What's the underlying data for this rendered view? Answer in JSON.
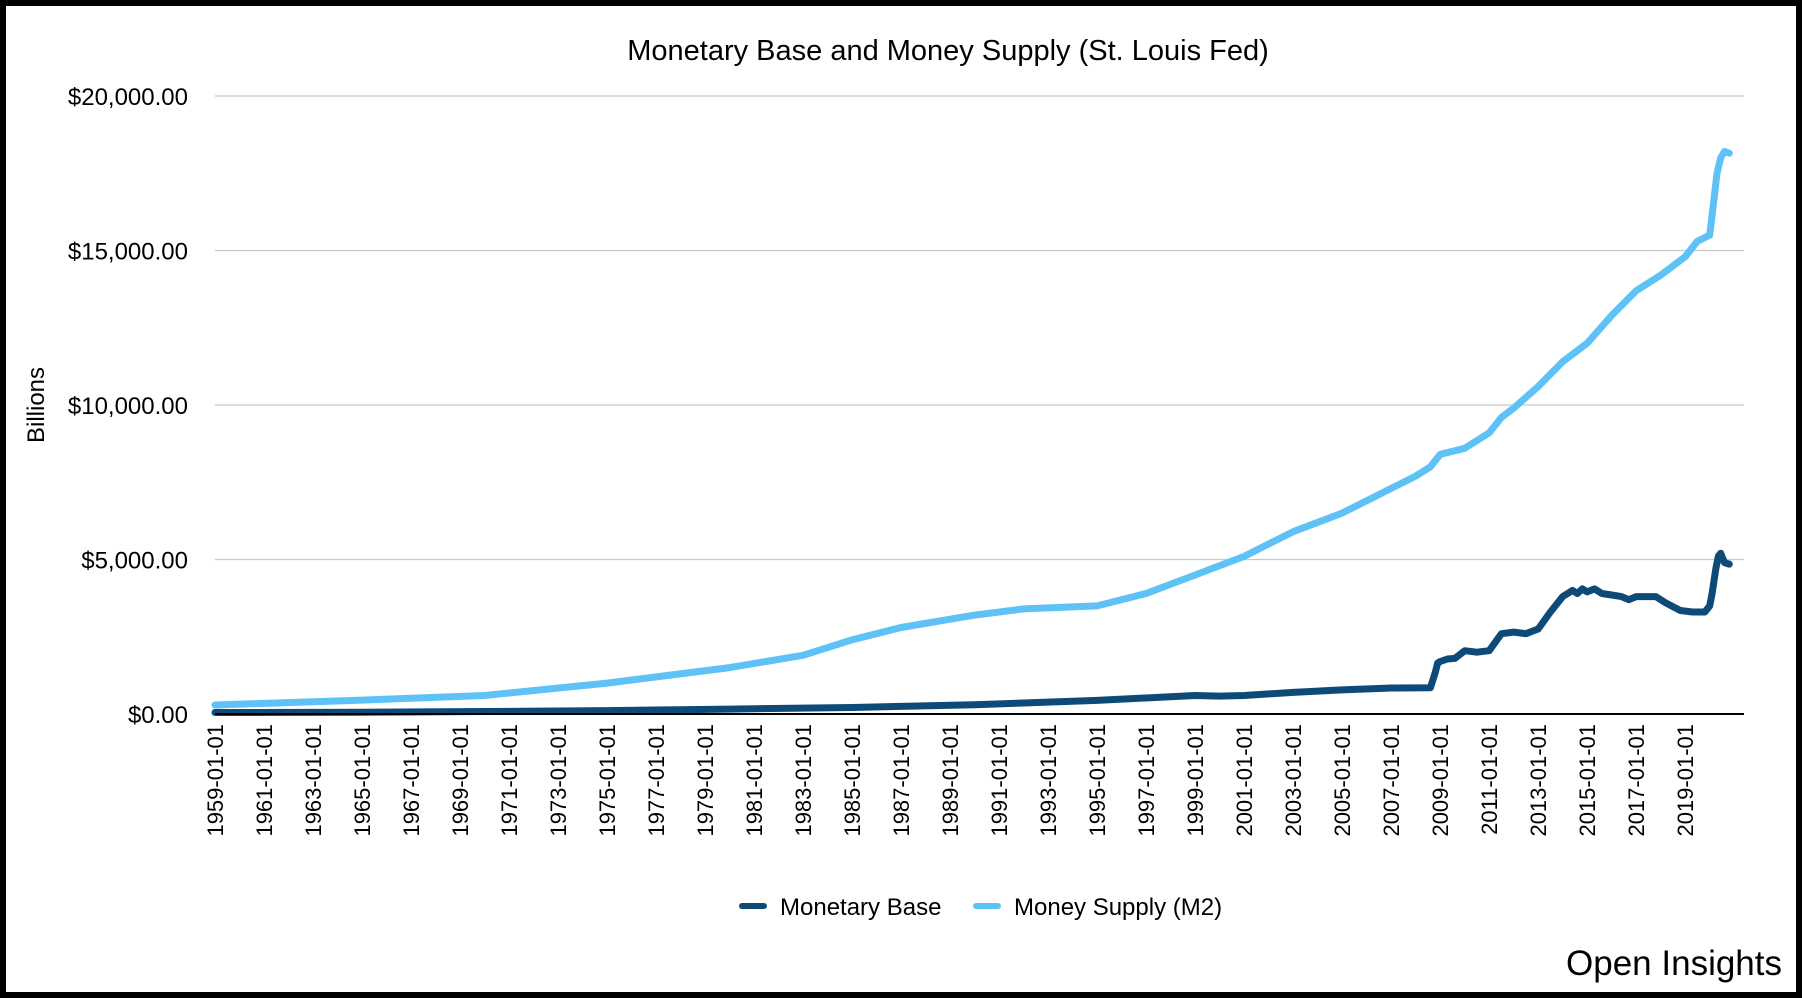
{
  "watermark": "Open Insights",
  "chart_data": {
    "type": "line",
    "title": "Monetary Base and Money Supply (St. Louis Fed)",
    "xlabel": "",
    "ylabel": "Billions",
    "ylim": [
      0,
      20000
    ],
    "yticks": [
      0,
      5000,
      10000,
      15000,
      20000
    ],
    "ytick_labels": [
      "$0.00",
      "$5,000.00",
      "$10,000.00",
      "$15,000.00",
      "$20,000.00"
    ],
    "xlim": [
      1959.0,
      2021.4
    ],
    "xtick_labels": [
      "1959-01-01",
      "1961-01-01",
      "1963-01-01",
      "1965-01-01",
      "1967-01-01",
      "1969-01-01",
      "1971-01-01",
      "1973-01-01",
      "1975-01-01",
      "1977-01-01",
      "1979-01-01",
      "1981-01-01",
      "1983-01-01",
      "1985-01-01",
      "1987-01-01",
      "1989-01-01",
      "1991-01-01",
      "1993-01-01",
      "1995-01-01",
      "1997-01-01",
      "1999-01-01",
      "2001-01-01",
      "2003-01-01",
      "2005-01-01",
      "2007-01-01",
      "2009-01-01",
      "2011-01-01",
      "2013-01-01",
      "2015-01-01",
      "2017-01-01",
      "2019-01-01"
    ],
    "grid": true,
    "legend_position": "bottom-center",
    "series": [
      {
        "name": "Monetary Base",
        "color": "#0e4a78",
        "x": [
          1959.0,
          1965.0,
          1970.0,
          1975.0,
          1980.0,
          1985.0,
          1990.0,
          1995.0,
          1999.0,
          2000.0,
          2001.0,
          2003.0,
          2005.0,
          2007.0,
          2008.6,
          2008.8,
          2008.9,
          2009.0,
          2009.3,
          2009.6,
          2010.0,
          2010.5,
          2011.0,
          2011.5,
          2012.0,
          2012.5,
          2013.0,
          2013.5,
          2014.0,
          2014.4,
          2014.6,
          2014.8,
          2015.0,
          2015.3,
          2015.6,
          2016.0,
          2016.4,
          2016.7,
          2017.0,
          2017.4,
          2017.8,
          2018.2,
          2018.8,
          2019.3,
          2019.8,
          2020.0,
          2020.1,
          2020.25,
          2020.35,
          2020.45,
          2020.6,
          2020.8
        ],
        "y": [
          50,
          55,
          80,
          110,
          160,
          210,
          300,
          440,
          600,
          580,
          600,
          700,
          780,
          840,
          850,
          1350,
          1650,
          1700,
          1780,
          1800,
          2050,
          2000,
          2050,
          2600,
          2650,
          2600,
          2750,
          3300,
          3800,
          4000,
          3900,
          4050,
          3950,
          4050,
          3900,
          3850,
          3800,
          3700,
          3800,
          3800,
          3800,
          3600,
          3350,
          3300,
          3300,
          3500,
          3900,
          4700,
          5100,
          5200,
          4900,
          4850
        ]
      },
      {
        "name": "Money Supply (M2)",
        "color": "#5ec2f7",
        "x": [
          1959.0,
          1965.0,
          1970.0,
          1975.0,
          1980.0,
          1983.0,
          1985.0,
          1987.0,
          1990.0,
          1992.0,
          1995.0,
          1997.0,
          1999.0,
          2001.0,
          2003.0,
          2005.0,
          2007.0,
          2008.0,
          2008.6,
          2009.0,
          2010.0,
          2011.0,
          2011.5,
          2012.0,
          2013.0,
          2014.0,
          2015.0,
          2016.0,
          2017.0,
          2018.0,
          2019.0,
          2019.5,
          2020.0,
          2020.15,
          2020.3,
          2020.45,
          2020.6,
          2020.8
        ],
        "y": [
          290,
          450,
          600,
          1000,
          1500,
          1900,
          2400,
          2800,
          3200,
          3400,
          3500,
          3900,
          4500,
          5100,
          5900,
          6500,
          7300,
          7700,
          8000,
          8400,
          8600,
          9100,
          9600,
          9900,
          10600,
          11400,
          12000,
          12900,
          13700,
          14200,
          14800,
          15300,
          15500,
          16500,
          17500,
          18000,
          18200,
          18150
        ]
      }
    ]
  }
}
